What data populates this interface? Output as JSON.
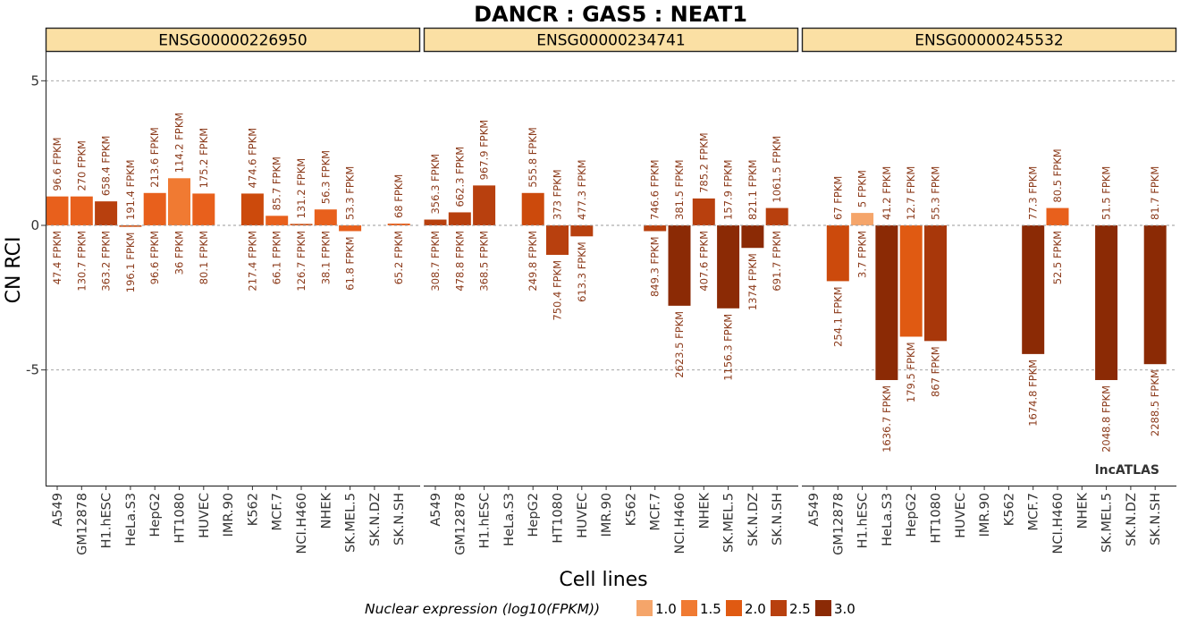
{
  "chart_data": {
    "type": "bar",
    "title": "DANCR : GAS5 : NEAT1",
    "xlabel": "Cell lines",
    "ylabel": "CN RCI",
    "ylim": [
      -9,
      6
    ],
    "yticks": [
      5,
      0,
      -5
    ],
    "grid": "dashed horizontal at y ticks",
    "cell_lines": [
      "A549",
      "GM12878",
      "H1.hESC",
      "HeLa.S3",
      "HepG2",
      "HT1080",
      "HUVEC",
      "IMR.90",
      "K562",
      "MCF.7",
      "NCI.H460",
      "NHEK",
      "SK.MEL.5",
      "SK.N.DZ",
      "SK.N.SH"
    ],
    "panels": [
      {
        "gene": "ENSG00000226950",
        "values": [
          1.0,
          1.0,
          0.83,
          -0.05,
          1.12,
          1.63,
          1.1,
          null,
          1.1,
          0.33,
          0.05,
          0.55,
          -0.2,
          null,
          0.06
        ],
        "cyto_fpkm": [
          "96.6 FPKM",
          "270 FPKM",
          "658.4 FPKM",
          "191.4 FPKM",
          "213.6 FPKM",
          "114.2 FPKM",
          "175.2 FPKM",
          "",
          "474.6 FPKM",
          "85.7 FPKM",
          "131.2 FPKM",
          "56.3 FPKM",
          "53.3 FPKM",
          "",
          "68 FPKM"
        ],
        "nuc_fpkm": [
          "47.4 FPKM",
          "130.7 FPKM",
          "363.2 FPKM",
          "196.1 FPKM",
          "96.6 FPKM",
          "36 FPKM",
          "80.1 FPKM",
          "",
          "217.4 FPKM",
          "66.1 FPKM",
          "126.7 FPKM",
          "38.1 FPKM",
          "61.8 FPKM",
          "",
          "65.2 FPKM"
        ]
      },
      {
        "gene": "ENSG00000234741",
        "values": [
          0.2,
          0.45,
          1.38,
          null,
          1.12,
          -1.02,
          -0.38,
          null,
          null,
          -0.2,
          -2.78,
          0.93,
          -2.87,
          -0.78,
          0.6
        ],
        "cyto_fpkm": [
          "356.3 FPKM",
          "662.3 FPKM",
          "967.9 FPKM",
          "",
          "555.8 FPKM",
          "373 FPKM",
          "477.3 FPKM",
          "",
          "",
          "746.6 FPKM",
          "381.5 FPKM",
          "785.2 FPKM",
          "157.9 FPKM",
          "821.1 FPKM",
          "1061.5 FPKM"
        ],
        "nuc_fpkm": [
          "308.7 FPKM",
          "478.8 FPKM",
          "368.5 FPKM",
          "",
          "249.8 FPKM",
          "750.4 FPKM",
          "613.3 FPKM",
          "",
          "",
          "849.3 FPKM",
          "2623.5 FPKM",
          "407.6 FPKM",
          "1156.3 FPKM",
          "1374 FPKM",
          "691.7 FPKM"
        ]
      },
      {
        "gene": "ENSG00000245532",
        "values": [
          null,
          -1.93,
          0.43,
          -5.35,
          -3.85,
          -4.0,
          null,
          null,
          null,
          -4.45,
          0.6,
          null,
          -5.35,
          null,
          -4.8
        ],
        "cyto_fpkm": [
          "",
          "67 FPKM",
          "5 FPKM",
          "41.2 FPKM",
          "12.7 FPKM",
          "55.3 FPKM",
          "",
          "",
          "",
          "77.3 FPKM",
          "80.5 FPKM",
          "",
          "51.5 FPKM",
          "",
          "81.7 FPKM"
        ],
        "nuc_fpkm": [
          "",
          "254.1 FPKM",
          "3.7 FPKM",
          "1636.7 FPKM",
          "179.5 FPKM",
          "867 FPKM",
          "",
          "",
          "",
          "1674.8 FPKM",
          "52.5 FPKM",
          "",
          "2048.8 FPKM",
          "",
          "2288.5 FPKM"
        ]
      }
    ],
    "bar_colors": {
      "ENSG00000226950": [
        "#e8601c",
        "#e8601c",
        "#b8400e",
        "#cc4a0c",
        "#e8601c",
        "#f07a32",
        "#e8601c",
        "",
        "#cc4a0c",
        "#e8601c",
        "#cc4a0c",
        "#e8601c",
        "#e8601c",
        "",
        "#e8601c"
      ],
      "ENSG00000234741": [
        "#b8400e",
        "#b8400e",
        "#b8400e",
        "",
        "#cc4a0c",
        "#b8400e",
        "#b8400e",
        "",
        "",
        "#b8400e",
        "#8b2a05",
        "#b8400e",
        "#8b2a05",
        "#8b2a05",
        "#b8400e"
      ],
      "ENSG00000245532": [
        "",
        "#cc4a0c",
        "#f5a56a",
        "#8b2a05",
        "#e05a12",
        "#a8370a",
        "",
        "",
        "",
        "#8b2a05",
        "#e8601c",
        "",
        "#8b2a05",
        "",
        "#8b2a05"
      ]
    },
    "legend": {
      "title": "Nuclear expression (log10(FPKM))",
      "items": [
        {
          "label": "1.0",
          "color": "#f5a56a"
        },
        {
          "label": "1.5",
          "color": "#f07a32"
        },
        {
          "label": "2.0",
          "color": "#e05a12"
        },
        {
          "label": "2.5",
          "color": "#b8400e"
        },
        {
          "label": "3.0",
          "color": "#8b2a05"
        }
      ]
    },
    "watermark": "lncATLAS"
  },
  "colors": {
    "strip_fill": "#fbe0a4",
    "grid": "#999999"
  }
}
